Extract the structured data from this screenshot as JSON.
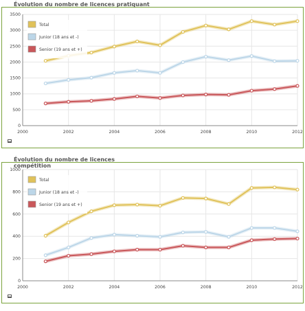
{
  "charts": [
    {
      "title": "Évolution du nombre de licences pratiquant"
    },
    {
      "title": "Évolution du nombre de licences compétition"
    }
  ],
  "chart_data": [
    {
      "type": "line",
      "title": "Évolution du nombre de licences pratiquant",
      "x": [
        2001,
        2002,
        2003,
        2004,
        2005,
        2006,
        2007,
        2008,
        2009,
        2010,
        2011,
        2012
      ],
      "xticks": [
        "2000",
        "2002",
        "2004",
        "2006",
        "2008",
        "2010",
        "2012"
      ],
      "yticks": [
        "0",
        "500",
        "1000",
        "1500",
        "2000",
        "2500",
        "3000",
        "3500"
      ],
      "xlim": [
        2000,
        2012
      ],
      "ylim": [
        0,
        3500
      ],
      "legend": "top-left",
      "grid": true,
      "series": [
        {
          "name": "Total",
          "color": "#e0c25a",
          "values": [
            2040,
            2200,
            2300,
            2490,
            2650,
            2530,
            2950,
            3150,
            3030,
            3290,
            3180,
            3290
          ]
        },
        {
          "name": "Junior (18 ans et -)",
          "color": "#bcd6e8",
          "values": [
            1330,
            1440,
            1510,
            1660,
            1730,
            1660,
            2000,
            2170,
            2060,
            2190,
            2030,
            2040
          ]
        },
        {
          "name": "Senior (19 ans et +)",
          "color": "#c9575a",
          "values": [
            700,
            750,
            780,
            840,
            920,
            870,
            950,
            980,
            970,
            1100,
            1150,
            1250
          ]
        }
      ]
    },
    {
      "type": "line",
      "title": "Évolution du nombre de licences compétition",
      "x": [
        2001,
        2002,
        2003,
        2004,
        2005,
        2006,
        2007,
        2008,
        2009,
        2010,
        2011,
        2012
      ],
      "xticks": [
        "2000",
        "2002",
        "2004",
        "2006",
        "2008",
        "2010",
        "2012"
      ],
      "yticks": [
        "0",
        "200",
        "400",
        "600",
        "800",
        "1000"
      ],
      "xlim": [
        2000,
        2012
      ],
      "ylim": [
        0,
        1000
      ],
      "legend": "top-left",
      "grid": true,
      "series": [
        {
          "name": "Total",
          "color": "#e0c25a",
          "values": [
            405,
            525,
            625,
            680,
            685,
            675,
            745,
            740,
            690,
            835,
            840,
            820
          ]
        },
        {
          "name": "Junior (18 ans et -)",
          "color": "#bcd6e8",
          "values": [
            230,
            300,
            385,
            415,
            405,
            395,
            435,
            440,
            395,
            475,
            475,
            445
          ]
        },
        {
          "name": "Senior (19 ans et +)",
          "color": "#c9575a",
          "values": [
            175,
            225,
            240,
            265,
            280,
            280,
            315,
            300,
            300,
            365,
            375,
            380
          ]
        }
      ]
    }
  ]
}
